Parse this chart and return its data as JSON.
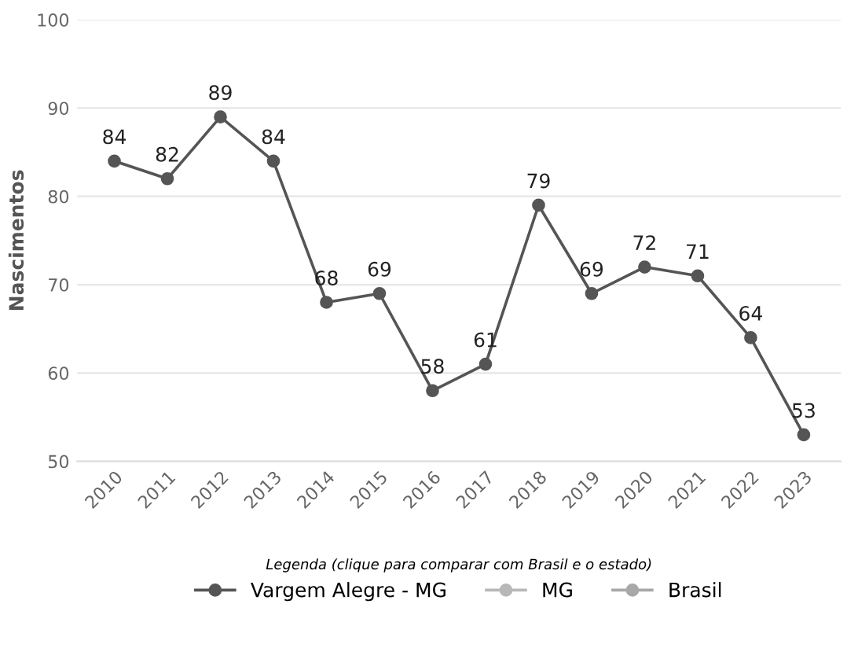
{
  "chart_data": {
    "type": "line",
    "ylabel": "Nascimentos",
    "legend_title": "Legenda (clique para comparar com Brasil e o estado)",
    "categories": [
      "2010",
      "2011",
      "2012",
      "2013",
      "2014",
      "2015",
      "2016",
      "2017",
      "2018",
      "2019",
      "2020",
      "2021",
      "2022",
      "2023"
    ],
    "series": [
      {
        "name": "Vargem Alegre - MG",
        "color": "#555555",
        "values": [
          84,
          82,
          89,
          84,
          68,
          69,
          58,
          61,
          79,
          69,
          72,
          71,
          64,
          53
        ]
      },
      {
        "name": "MG",
        "color": "#b8b8b8",
        "values": [
          null,
          null,
          null,
          null,
          null,
          null,
          null,
          null,
          null,
          null,
          null,
          null,
          null,
          null
        ]
      },
      {
        "name": "Brasil",
        "color": "#a8a8a8",
        "values": [
          null,
          null,
          null,
          null,
          null,
          null,
          null,
          null,
          null,
          null,
          null,
          null,
          null,
          null
        ]
      }
    ],
    "ylim": [
      50,
      100
    ],
    "yticks": [
      50,
      60,
      70,
      80,
      90,
      100
    ],
    "grid": "y",
    "legend": "bottom",
    "marker": "circle",
    "line_style": "solid",
    "data_labels": true
  }
}
